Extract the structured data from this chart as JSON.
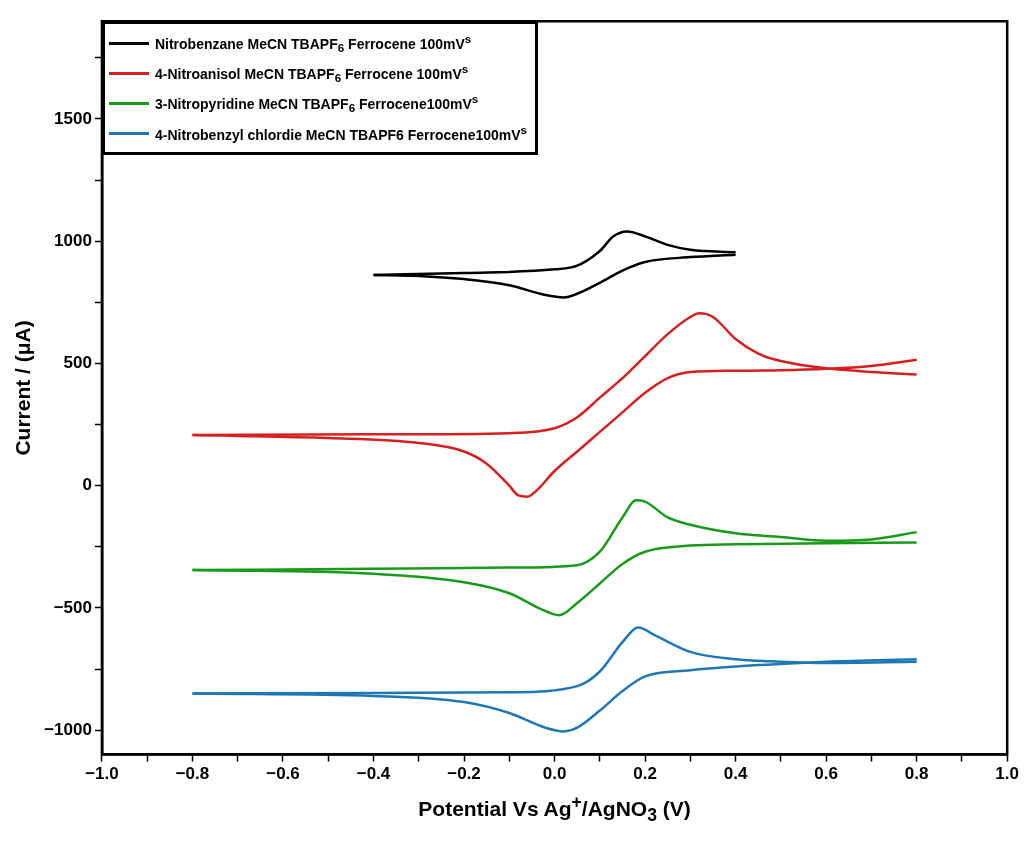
{
  "chart_data": {
    "type": "line",
    "xlabel": "Potential Vs Ag$^{+}$/AgNO$_{3}$ (V)",
    "ylabel": "Current / (μA)",
    "xlim": [
      -1.0,
      1.0
    ],
    "xticks": [
      {
        "value": -1.0,
        "label": "−1.0"
      },
      {
        "value": -0.9,
        "label": null
      },
      {
        "value": -0.8,
        "label": "−0.8"
      },
      {
        "value": -0.7,
        "label": null
      },
      {
        "value": -0.6,
        "label": "−0.6"
      },
      {
        "value": -0.5,
        "label": null
      },
      {
        "value": -0.4,
        "label": "−0.4"
      },
      {
        "value": -0.3,
        "label": null
      },
      {
        "value": -0.2,
        "label": "−0.2"
      },
      {
        "value": -0.1,
        "label": null
      },
      {
        "value": 0,
        "label": "0.0"
      },
      {
        "value": 0.1,
        "label": null
      },
      {
        "value": 0.2,
        "label": "0.2"
      },
      {
        "value": 0.3,
        "label": null
      },
      {
        "value": 0.4,
        "label": "0.4"
      },
      {
        "value": 0.5,
        "label": null
      },
      {
        "value": 0.6,
        "label": "0.6"
      },
      {
        "value": 0.7,
        "label": null
      },
      {
        "value": 0.8,
        "label": "0.8"
      },
      {
        "value": 0.9,
        "label": null
      },
      {
        "value": 1.0,
        "label": "1.0"
      }
    ],
    "ylim": [
      -1100,
      1900
    ],
    "yticks": [
      {
        "value": -1000,
        "label": "−1000"
      },
      {
        "value": -750,
        "label": null
      },
      {
        "value": -500,
        "label": "−500"
      },
      {
        "value": -250,
        "label": null
      },
      0,
      {
        "value": 250,
        "label": null
      },
      500,
      {
        "value": 750,
        "label": null
      },
      1000,
      {
        "value": 1250,
        "label": null
      },
      1500,
      {
        "value": 1750,
        "label": null
      }
    ],
    "grid": false,
    "legend": "top left",
    "marker": "none",
    "line_style": "solid",
    "series": [
      {
        "name": "Nitrobenzane MeCN TBAPF$_{6}$ Ferrocene 100mV$^{s}$",
        "color": "#000000",
        "x": [
          -0.4,
          -0.2,
          0.0,
          0.05,
          0.1,
          0.13,
          0.16,
          0.2,
          0.25,
          0.3,
          0.4
        ],
        "values": [
          862,
          870,
          885,
          900,
          960,
          1020,
          1040,
          1020,
          985,
          965,
          955
        ]
      },
      {
        "color": "#000000",
        "x": [
          -0.4,
          -0.3,
          -0.2,
          -0.1,
          -0.02,
          0.02,
          0.05,
          0.1,
          0.15,
          0.2,
          0.3,
          0.4
        ],
        "values": [
          862,
          858,
          845,
          820,
          780,
          770,
          785,
          830,
          880,
          915,
          935,
          945
        ]
      },
      {
        "name": "4-Nitroanisol MeCN TBAPF$_{6}$ Ferrocene 100mV$^{s}$",
        "color": "#d62020",
        "x": [
          -0.8,
          -0.4,
          -0.1,
          0.0,
          0.05,
          0.1,
          0.15,
          0.2,
          0.25,
          0.3,
          0.32,
          0.35,
          0.4,
          0.45,
          0.5,
          0.6,
          0.7,
          0.8
        ],
        "values": [
          207,
          210,
          215,
          235,
          280,
          360,
          440,
          530,
          620,
          690,
          705,
          690,
          600,
          540,
          510,
          480,
          465,
          455
        ]
      },
      {
        "color": "#d62020",
        "x": [
          -0.8,
          -0.5,
          -0.3,
          -0.2,
          -0.15,
          -0.1,
          -0.08,
          -0.06,
          -0.04,
          0.0,
          0.05,
          0.1,
          0.15,
          0.2,
          0.25,
          0.3,
          0.4,
          0.5,
          0.6,
          0.7,
          0.8
        ],
        "values": [
          207,
          195,
          175,
          140,
          90,
          0,
          -40,
          -45,
          -20,
          60,
          140,
          220,
          300,
          380,
          440,
          465,
          470,
          472,
          478,
          490,
          515
        ]
      },
      {
        "name": "3-Nitropyridine MeCN TBAPF$_{6}$ Ferrocene100mV$^{s}$",
        "color": "#1a9a1a",
        "x": [
          -0.8,
          -0.4,
          -0.1,
          0.05,
          0.1,
          0.15,
          0.18,
          0.2,
          0.25,
          0.3,
          0.4,
          0.5,
          0.6,
          0.7,
          0.8
        ],
        "values": [
          -345,
          -340,
          -335,
          -325,
          -270,
          -130,
          -60,
          -65,
          -130,
          -160,
          -195,
          -210,
          -225,
          -220,
          -190
        ]
      },
      {
        "color": "#1a9a1a",
        "x": [
          -0.8,
          -0.4,
          -0.2,
          -0.1,
          -0.03,
          0.01,
          0.05,
          0.1,
          0.15,
          0.2,
          0.3,
          0.4,
          0.6,
          0.8
        ],
        "values": [
          -345,
          -360,
          -395,
          -440,
          -505,
          -530,
          -480,
          -400,
          -320,
          -270,
          -245,
          -240,
          -235,
          -232
        ]
      },
      {
        "name": "4-Nitrobenzyl chlordie MeCN TBAPF6 Ferrocene100mV$^{s}$",
        "color": "#1f77b4",
        "x": [
          -0.8,
          -0.4,
          -0.1,
          0.05,
          0.1,
          0.15,
          0.185,
          0.22,
          0.3,
          0.4,
          0.5,
          0.6,
          0.8
        ],
        "values": [
          -850,
          -848,
          -845,
          -820,
          -760,
          -640,
          -580,
          -610,
          -680,
          -710,
          -720,
          -725,
          -720
        ]
      },
      {
        "color": "#1f77b4",
        "x": [
          -0.8,
          -0.4,
          -0.2,
          -0.1,
          -0.02,
          0.02,
          0.05,
          0.1,
          0.15,
          0.2,
          0.3,
          0.4,
          0.6,
          0.8
        ],
        "values": [
          -850,
          -860,
          -885,
          -930,
          -990,
          -1005,
          -990,
          -920,
          -840,
          -780,
          -755,
          -740,
          -720,
          -710
        ]
      }
    ]
  }
}
